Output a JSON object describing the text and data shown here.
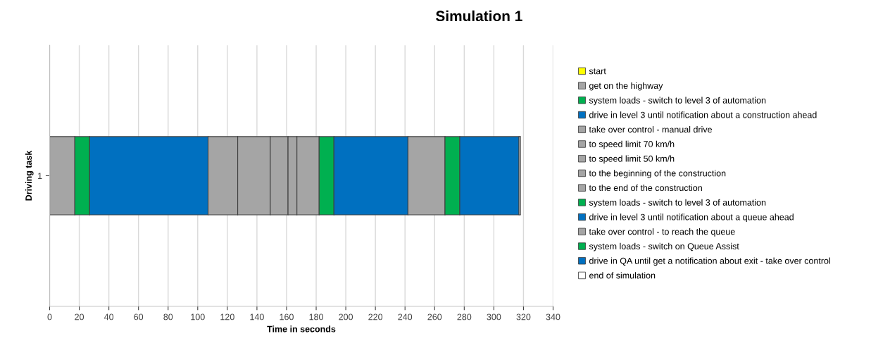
{
  "chart_data": {
    "type": "bar",
    "orientation": "horizontal",
    "stacked": true,
    "title": "Simulation 1",
    "xlabel": "Time in seconds",
    "ylabel": "Driving task",
    "categories": [
      "1"
    ],
    "series": [
      {
        "name": "start",
        "color": "#ffff00",
        "values": [
          0
        ]
      },
      {
        "name": "get on the highway",
        "color": "#a5a5a5",
        "values": [
          17
        ]
      },
      {
        "name": "system loads - switch to level 3 of automation",
        "color": "#00b050",
        "values": [
          10
        ]
      },
      {
        "name": "drive in level 3 until notification about a construction ahead",
        "color": "#0070c0",
        "values": [
          80
        ]
      },
      {
        "name": "take over control - manual drive",
        "color": "#a5a5a5",
        "values": [
          20
        ]
      },
      {
        "name": "to speed limit 70 km/h",
        "color": "#a5a5a5",
        "values": [
          22
        ]
      },
      {
        "name": "to speed limit 50 km/h",
        "color": "#a5a5a5",
        "values": [
          12
        ]
      },
      {
        "name": "to the beginning of the construction",
        "color": "#a5a5a5",
        "values": [
          6
        ]
      },
      {
        "name": "to the end of the construction",
        "color": "#a5a5a5",
        "values": [
          15
        ]
      },
      {
        "name": "system loads - switch to level 3 of automation",
        "color": "#00b050",
        "values": [
          10
        ]
      },
      {
        "name": "drive in level 3 until notification about a queue ahead",
        "color": "#0070c0",
        "values": [
          50
        ]
      },
      {
        "name": "take over control - to reach the queue",
        "color": "#a5a5a5",
        "values": [
          25
        ]
      },
      {
        "name": "system loads - switch on Queue Assist",
        "color": "#00b050",
        "values": [
          10
        ]
      },
      {
        "name": "drive in QA until get a notification about exit - take over control",
        "color": "#0070c0",
        "values": [
          40
        ]
      },
      {
        "name": "end of simulation",
        "color": "#ffffff",
        "values": [
          1
        ]
      }
    ],
    "xlim": [
      0,
      340
    ],
    "xticks": [
      0,
      20,
      40,
      60,
      80,
      100,
      120,
      140,
      160,
      180,
      200,
      220,
      240,
      260,
      280,
      300,
      320,
      340
    ],
    "grid": "x",
    "legend": "right"
  }
}
